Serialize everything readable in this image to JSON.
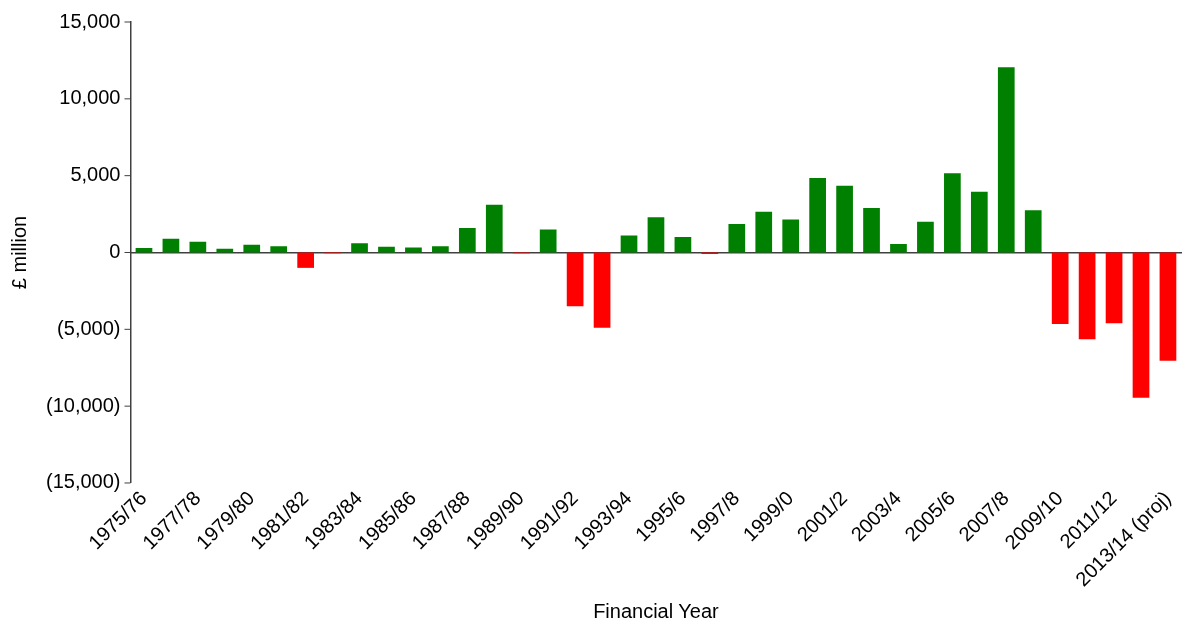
{
  "chart_data": {
    "type": "bar",
    "xlabel": "Financial Year",
    "ylabel": "£ million",
    "categories": [
      "1975/76",
      null,
      "1977/78",
      null,
      "1979/80",
      null,
      "1981/82",
      null,
      "1983/84",
      null,
      "1985/86",
      null,
      "1987/88",
      null,
      "1989/90",
      null,
      "1991/92",
      null,
      "1993/94",
      null,
      "1995/6",
      null,
      "1997/8",
      null,
      "1999/0",
      null,
      "2001/2",
      null,
      "2003/4",
      null,
      "2005/6",
      null,
      "2007/8",
      null,
      "2009/10",
      null,
      "2011/12",
      null,
      "2013/14 (proj)"
    ],
    "values": [
      300,
      900,
      700,
      250,
      500,
      400,
      -1000,
      -50,
      600,
      380,
      320,
      400,
      1600,
      3100,
      -50,
      1500,
      -3500,
      -4900,
      1100,
      2300,
      1000,
      -100,
      1850,
      2650,
      2150,
      4850,
      4350,
      2900,
      550,
      2000,
      5150,
      3950,
      12050,
      2750,
      -4650,
      -5650,
      -4600,
      -9450,
      -7050
    ],
    "colors": [
      "#008000",
      "#008000",
      "#008000",
      "#008000",
      "#008000",
      "#008000",
      "#ff0000",
      "#ff0000",
      "#008000",
      "#008000",
      "#008000",
      "#008000",
      "#008000",
      "#008000",
      "#ff0000",
      "#008000",
      "#ff0000",
      "#ff0000",
      "#008000",
      "#008000",
      "#008000",
      "#ff0000",
      "#008000",
      "#008000",
      "#008000",
      "#008000",
      "#008000",
      "#008000",
      "#008000",
      "#008000",
      "#008000",
      "#008000",
      "#008000",
      "#008000",
      "#ff0000",
      "#ff0000",
      "#ff0000",
      "#ff0000",
      "#ff0000"
    ],
    "ylim": [
      -15000,
      15000
    ],
    "yticks": [
      {
        "value": -15000,
        "label": "(15,000)"
      },
      {
        "value": -10000,
        "label": "(10,000)"
      },
      {
        "value": -5000,
        "label": "(5,000)"
      },
      0,
      {
        "value": 5000,
        "label": "5,000"
      },
      {
        "value": 10000,
        "label": "10,000"
      },
      {
        "value": 15000,
        "label": "15,000"
      }
    ],
    "legend": false
  }
}
